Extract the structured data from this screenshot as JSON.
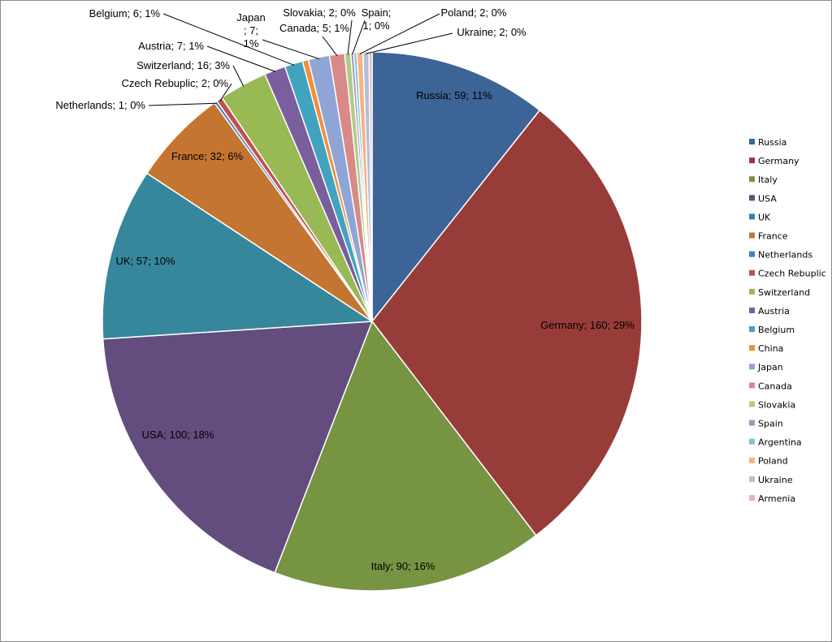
{
  "chart_data": {
    "type": "pie",
    "title": "",
    "legend_position": "right",
    "label_format": "category; value; percent",
    "slices": [
      {
        "name": "Russia",
        "value": 59,
        "percent": "11%",
        "color": "#3C6497",
        "label": "Russia; 59; 11%"
      },
      {
        "name": "Germany",
        "value": 160,
        "percent": "29%",
        "color": "#983C3A",
        "label": "Germany; 160; 29%"
      },
      {
        "name": "Italy",
        "value": 90,
        "percent": "16%",
        "color": "#779442",
        "label": "Italy; 90; 16%"
      },
      {
        "name": "USA",
        "value": 100,
        "percent": "18%",
        "color": "#624D7E",
        "label": "USA; 100; 18%"
      },
      {
        "name": "UK",
        "value": 57,
        "percent": "10%",
        "color": "#36879C",
        "label": "UK; 57; 10%"
      },
      {
        "name": "France",
        "value": 32,
        "percent": "6%",
        "color": "#C47531",
        "label": "France; 32; 6%"
      },
      {
        "name": "Netherlands",
        "value": 1,
        "percent": "0%",
        "color": "#4A7CC0",
        "label": "Netherlands; 1; 0%"
      },
      {
        "name": "Czech Rebuplic",
        "value": 2,
        "percent": "0%",
        "color": "#C14F4C",
        "label": "Czech Rebuplic; 2; 0%"
      },
      {
        "name": "Switzerland",
        "value": 16,
        "percent": "3%",
        "color": "#98B954",
        "label": "Switzerland; 16; 3%"
      },
      {
        "name": "Austria",
        "value": 7,
        "percent": "1%",
        "color": "#7B5E9E",
        "label": "Austria; 7; 1%"
      },
      {
        "name": "Belgium",
        "value": 6,
        "percent": "1%",
        "color": "#42A3BF",
        "label": "Belgium; 6; 1%"
      },
      {
        "name": "China",
        "value": 2,
        "percent": "0%",
        "color": "#F08F3C",
        "label": ""
      },
      {
        "name": "Japan",
        "value": 7,
        "percent": "1%",
        "color": "#8EA5D6",
        "label": "Japan; 7; 1%"
      },
      {
        "name": "Canada",
        "value": 5,
        "percent": "1%",
        "color": "#D88A89",
        "label": "Canada; 5; 1%"
      },
      {
        "name": "Slovakia",
        "value": 2,
        "percent": "0%",
        "color": "#B1CB87",
        "label": "Slovakia; 2; 0%"
      },
      {
        "name": "Spain",
        "value": 1,
        "percent": "0%",
        "color": "#A495BC",
        "label": "Spain; 1; 0%"
      },
      {
        "name": "Argentina",
        "value": 1,
        "percent": "0%",
        "color": "#82C2D6",
        "label": ""
      },
      {
        "name": "Poland",
        "value": 2,
        "percent": "0%",
        "color": "#F8B283",
        "label": "Poland; 2; 0%"
      },
      {
        "name": "Ukraine",
        "value": 2,
        "percent": "0%",
        "color": "#B0BFDD",
        "label": "Ukraine; 2; 0%"
      },
      {
        "name": "Armenia",
        "value": 1,
        "percent": "0%",
        "color": "#E5B6B4",
        "label": ""
      }
    ]
  }
}
